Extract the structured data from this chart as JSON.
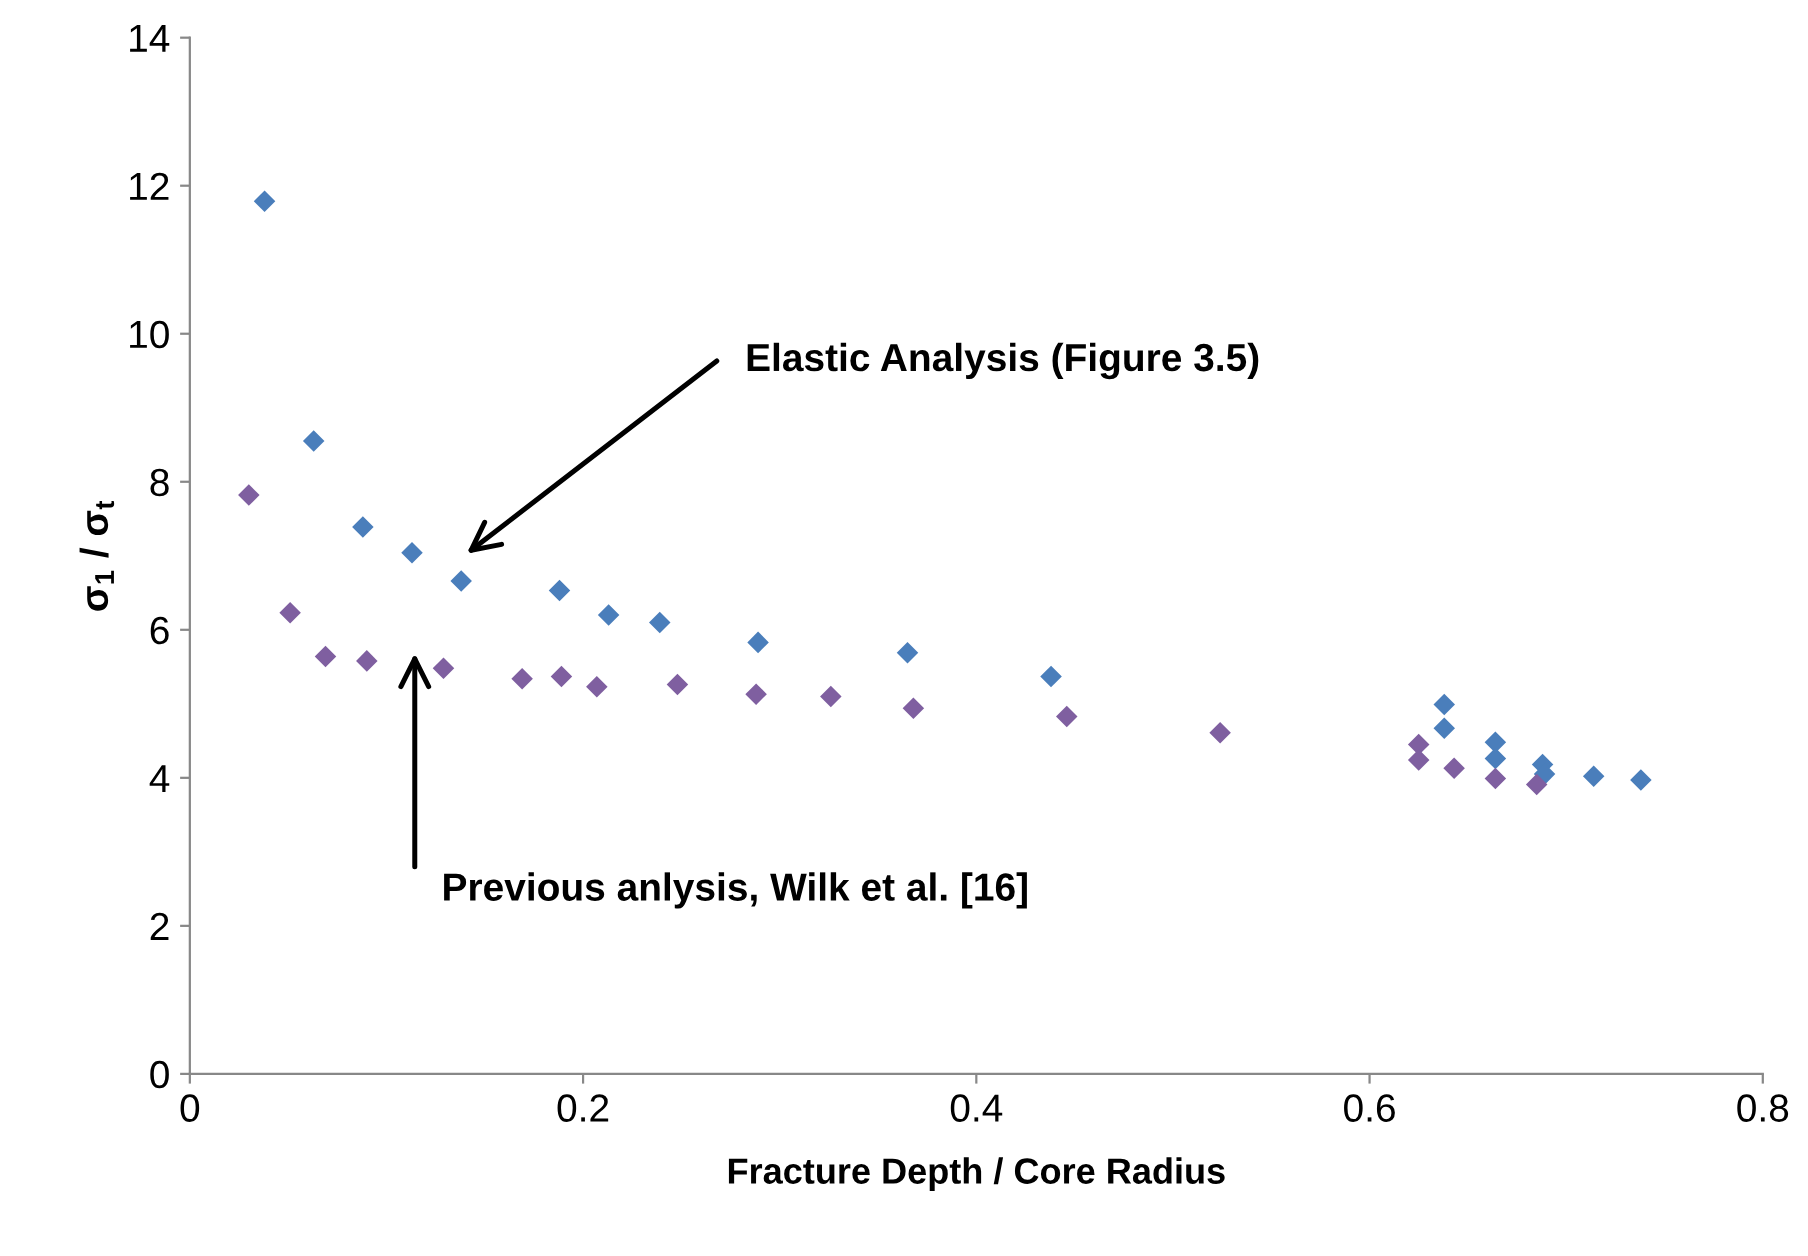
{
  "chart_data": {
    "type": "scatter",
    "xlabel": "Fracture Depth / Core Radius",
    "ylabel": "σ$_{1}$ / σ$_{t}$",
    "xlim": [
      0,
      0.8
    ],
    "xticks": [
      0,
      0.2,
      0.4,
      0.6,
      0.8
    ],
    "ylim": [
      0,
      14
    ],
    "yticks": [
      0,
      2,
      4,
      6,
      8,
      10,
      12,
      14
    ],
    "grid": false,
    "marker": "diamond",
    "series": [
      {
        "color": "#4a7ebb",
        "x": [
          0.038,
          0.063,
          0.088,
          0.113,
          0.138,
          0.188,
          0.213,
          0.239,
          0.289,
          0.365,
          0.438,
          0.638,
          0.638,
          0.664,
          0.664,
          0.688,
          0.689,
          0.714,
          0.738
        ],
        "values": [
          11.79,
          8.55,
          7.39,
          7.04,
          6.66,
          6.53,
          6.2,
          6.1,
          5.83,
          5.69,
          5.37,
          4.99,
          4.67,
          4.48,
          4.26,
          4.18,
          4.05,
          4.02,
          3.97
        ]
      },
      {
        "color": "#7f5fa0",
        "x": [
          0.03,
          0.051,
          0.069,
          0.09,
          0.129,
          0.169,
          0.189,
          0.207,
          0.248,
          0.288,
          0.326,
          0.368,
          0.446,
          0.524,
          0.625,
          0.625,
          0.643,
          0.664,
          0.685
        ],
        "values": [
          7.82,
          6.23,
          5.64,
          5.58,
          5.48,
          5.34,
          5.37,
          5.23,
          5.26,
          5.13,
          5.1,
          4.94,
          4.83,
          4.61,
          4.45,
          4.24,
          4.13,
          3.99,
          3.91
        ]
      }
    ],
    "annotations": [
      "Elastic Analysis (Figure 3.5)",
      "Previous anlysis, Wilk et al. [16]"
    ]
  }
}
